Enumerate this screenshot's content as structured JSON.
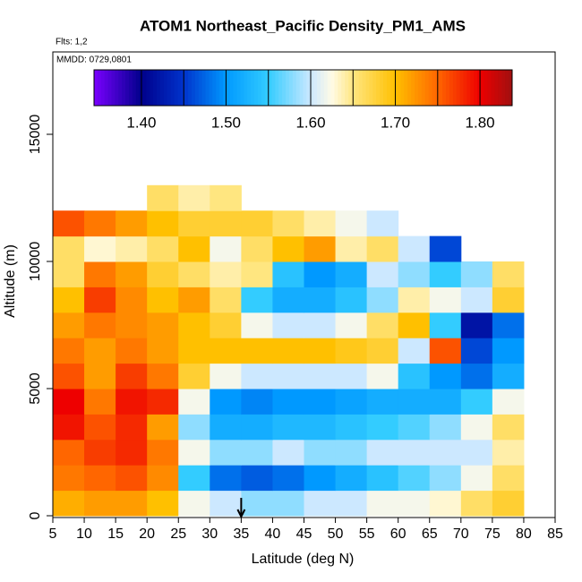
{
  "chart_data": {
    "type": "heatmap",
    "title": "ATOM1 Northeast_Pacific Density_PM1_AMS",
    "flights": "Flts: 1,2",
    "dates": "MMDD: 0729,0801",
    "xlabel": "Latitude (deg N)",
    "ylabel": "Altitude (m)",
    "xlim": [
      5,
      85
    ],
    "ylim": [
      0,
      18240
    ],
    "xticks": [
      5,
      10,
      15,
      20,
      25,
      30,
      35,
      40,
      45,
      50,
      55,
      60,
      65,
      70,
      75,
      80,
      85
    ],
    "yticks": [
      0,
      5000,
      10000,
      15000
    ],
    "x_bins": [
      5,
      10,
      15,
      20,
      25,
      30,
      35,
      40,
      45,
      50,
      55,
      60,
      65,
      70,
      75,
      80
    ],
    "y_bins": [
      0,
      1000,
      2000,
      3000,
      4000,
      5000,
      6000,
      7000,
      8000,
      9000,
      10000,
      11000,
      12000,
      13000
    ],
    "values": [
      [
        1.71,
        1.72,
        1.72,
        1.7,
        1.62,
        1.6,
        1.58,
        1.58,
        1.6,
        1.6,
        1.62,
        1.62,
        1.63,
        1.66,
        1.68
      ],
      [
        1.74,
        1.75,
        1.76,
        1.73,
        1.55,
        1.48,
        1.47,
        1.48,
        1.5,
        1.52,
        1.54,
        1.56,
        1.58,
        1.62,
        1.66
      ],
      [
        1.75,
        1.77,
        1.78,
        1.74,
        1.62,
        1.58,
        1.58,
        1.6,
        1.58,
        1.58,
        1.6,
        1.6,
        1.6,
        1.6,
        1.64
      ],
      [
        1.79,
        1.76,
        1.78,
        1.72,
        1.58,
        1.52,
        1.52,
        1.53,
        1.53,
        1.54,
        1.55,
        1.56,
        1.58,
        1.62,
        1.66
      ],
      [
        1.8,
        1.74,
        1.79,
        1.78,
        1.62,
        1.5,
        1.49,
        1.5,
        1.5,
        1.51,
        1.52,
        1.52,
        1.52,
        1.55,
        1.62
      ],
      [
        1.76,
        1.72,
        1.77,
        1.74,
        1.68,
        1.62,
        1.6,
        1.6,
        1.6,
        1.6,
        1.62,
        1.54,
        1.5,
        1.48,
        1.52
      ],
      [
        1.74,
        1.72,
        1.74,
        1.72,
        1.7,
        1.7,
        1.7,
        1.7,
        1.7,
        1.69,
        1.68,
        1.6,
        1.76,
        1.46,
        1.5
      ],
      [
        1.72,
        1.74,
        1.73,
        1.72,
        1.7,
        1.68,
        1.62,
        1.6,
        1.6,
        1.62,
        1.66,
        1.7,
        1.55,
        1.42,
        1.48
      ],
      [
        1.7,
        1.77,
        1.73,
        1.7,
        1.72,
        1.66,
        1.55,
        1.52,
        1.52,
        1.54,
        1.58,
        1.64,
        1.62,
        1.6,
        1.68
      ],
      [
        1.66,
        1.74,
        1.72,
        1.68,
        1.66,
        1.64,
        1.65,
        1.54,
        1.5,
        1.52,
        1.6,
        1.58,
        1.55,
        1.58,
        1.66
      ],
      [
        1.66,
        1.63,
        1.64,
        1.66,
        1.7,
        1.62,
        1.66,
        1.7,
        1.72,
        1.64,
        1.66,
        1.6,
        1.46,
        null,
        null
      ],
      [
        1.76,
        1.74,
        1.72,
        1.7,
        1.68,
        1.68,
        1.68,
        1.66,
        1.64,
        1.62,
        1.6,
        null,
        null,
        null,
        null
      ],
      [
        null,
        null,
        null,
        1.66,
        1.64,
        1.65,
        null,
        null,
        null,
        null,
        null,
        null,
        null,
        null,
        null
      ]
    ],
    "arrow_x": 35,
    "colorbar_lim": [
      1.344,
      1.838
    ],
    "colorbar_lines": [
      1.4,
      1.45,
      1.5,
      1.55,
      1.6,
      1.65,
      1.7,
      1.75,
      1.8
    ],
    "colorbar_ticks": [
      {
        "value": 1.4,
        "label": "1.40"
      },
      {
        "value": 1.5,
        "label": "1.50"
      },
      {
        "value": 1.6,
        "label": "1.60"
      },
      {
        "value": 1.7,
        "label": "1.70"
      },
      {
        "value": 1.8,
        "label": "1.80"
      }
    ],
    "colorscale": [
      [
        1.344,
        "#7b00ff"
      ],
      [
        1.4,
        "#00008b"
      ],
      [
        1.45,
        "#0033cc"
      ],
      [
        1.5,
        "#0099ff"
      ],
      [
        1.55,
        "#33ccff"
      ],
      [
        1.6,
        "#cce8ff"
      ],
      [
        1.625,
        "#fffbe6"
      ],
      [
        1.65,
        "#ffe680"
      ],
      [
        1.7,
        "#ffc000"
      ],
      [
        1.75,
        "#ff6600"
      ],
      [
        1.8,
        "#ee0000"
      ],
      [
        1.838,
        "#a01010"
      ]
    ]
  }
}
